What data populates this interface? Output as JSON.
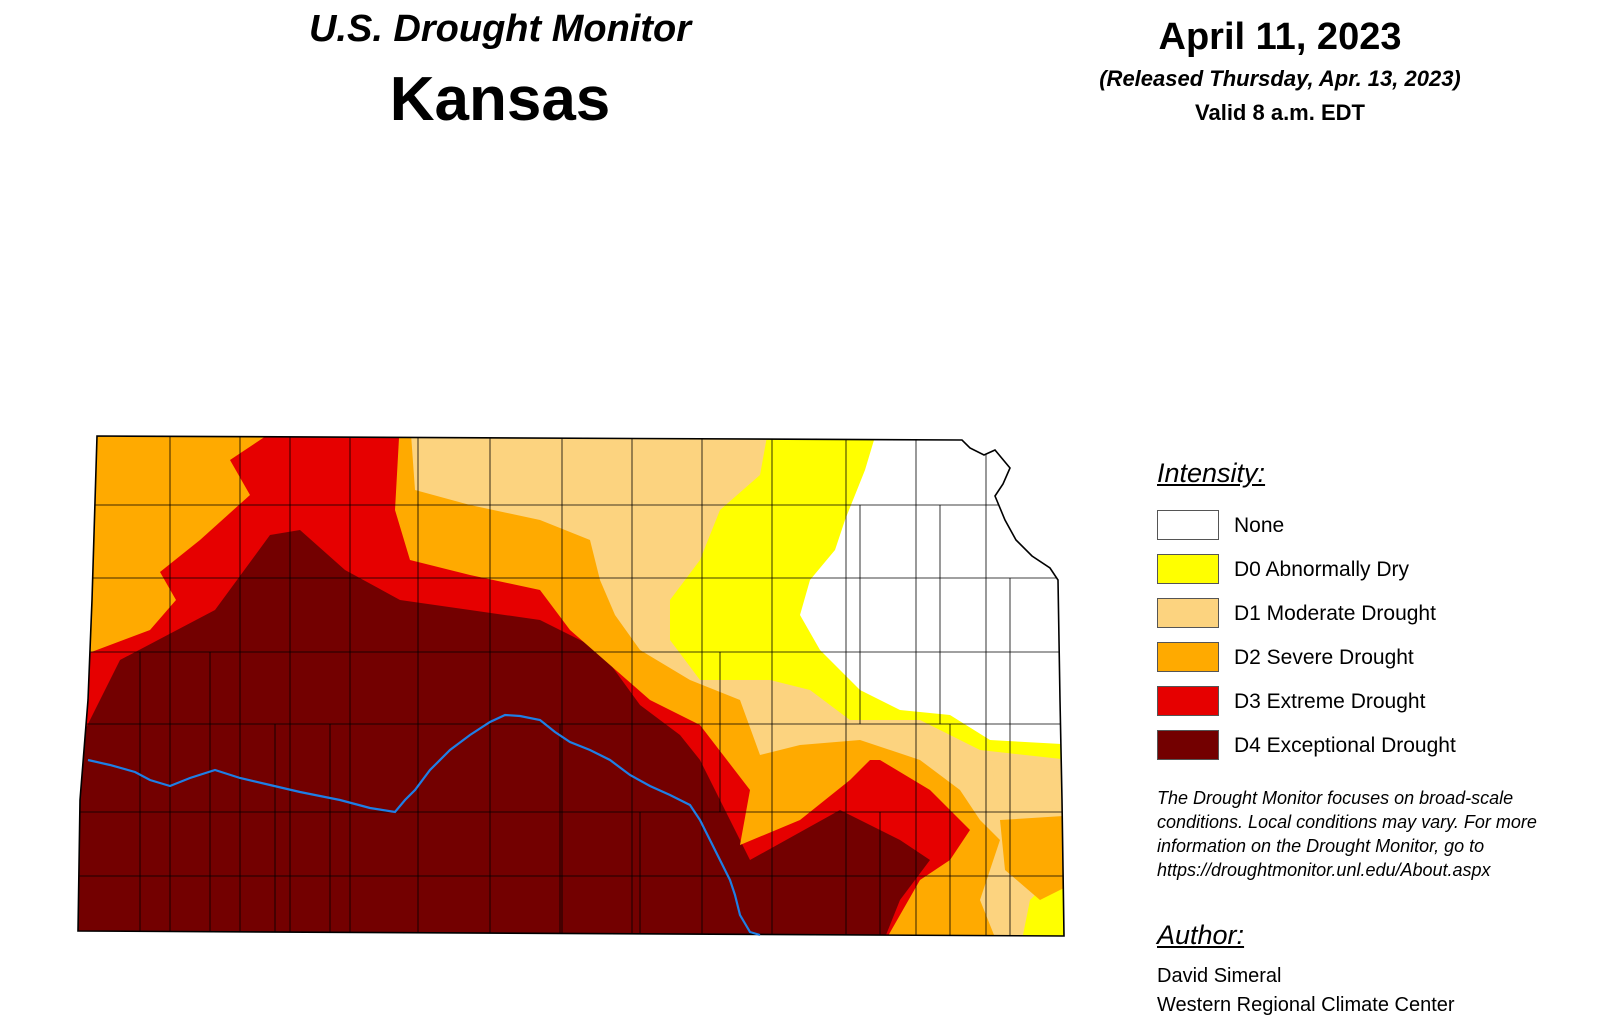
{
  "header": {
    "title": "U.S. Drought Monitor",
    "state": "Kansas",
    "date": "April 11, 2023",
    "released": "(Released Thursday, Apr. 13, 2023)",
    "valid": "Valid 8 a.m. EDT"
  },
  "legend": {
    "title": "Intensity:",
    "items": [
      {
        "label": "None",
        "color": "#ffffff"
      },
      {
        "label": "D0 Abnormally Dry",
        "color": "#ffff00"
      },
      {
        "label": "D1 Moderate Drought",
        "color": "#fcd37f"
      },
      {
        "label": "D2 Severe Drought",
        "color": "#ffaa00"
      },
      {
        "label": "D3 Extreme Drought",
        "color": "#e60000"
      },
      {
        "label": "D4 Exceptional Drought",
        "color": "#730000"
      }
    ]
  },
  "note": "The Drought Monitor focuses on broad-scale conditions. Local conditions may vary. For more information on the Drought Monitor, go to https://droughtmonitor.unl.edu/About.aspx",
  "author": {
    "title": "Author:",
    "name": "David Simeral",
    "org": "Western Regional Climate Center"
  },
  "map": {
    "river_color": "#1e7fe6",
    "border_color": "#000000"
  }
}
